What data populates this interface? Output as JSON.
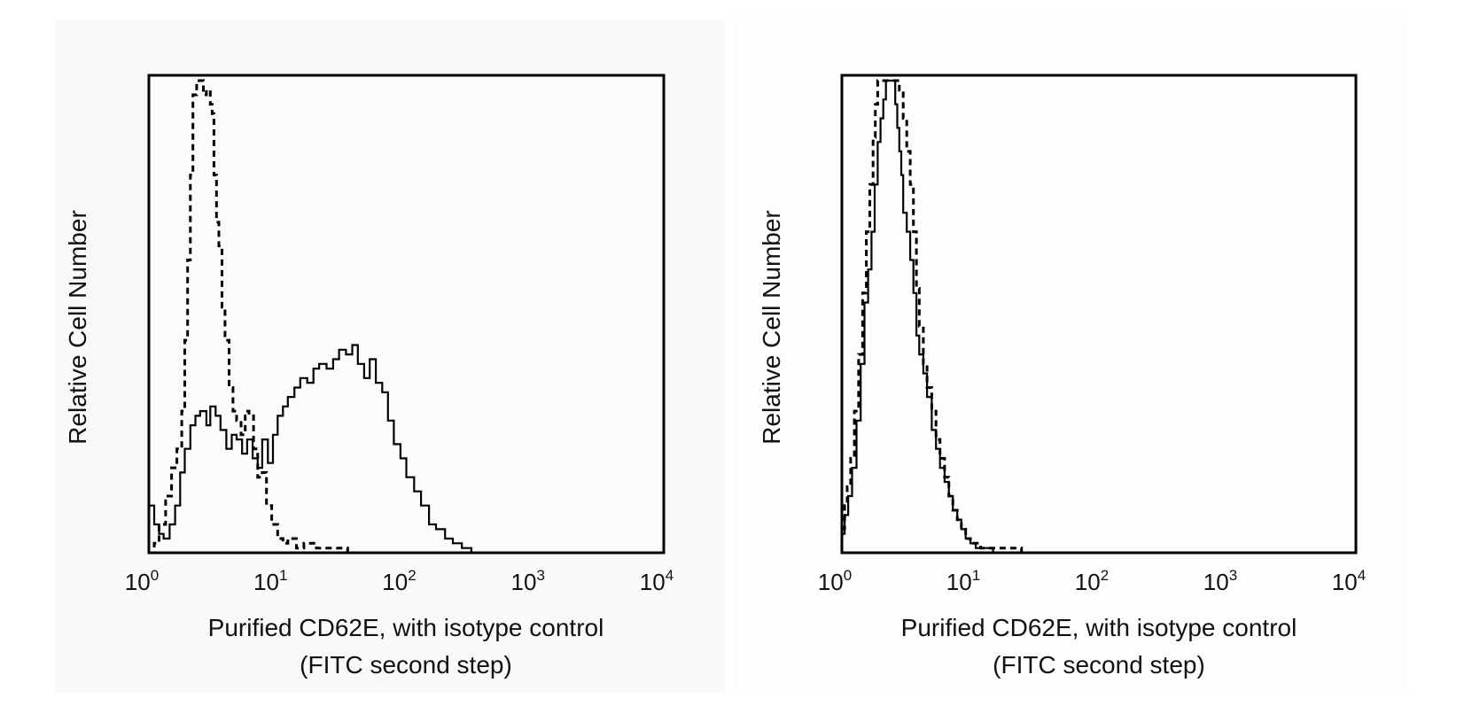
{
  "chart_data": [
    {
      "type": "line",
      "ylabel": "Relative Cell Number",
      "xlabel_line1": "Purified CD62E, with isotype control",
      "xlabel_line2": "(FITC second step)",
      "x_scale": "log",
      "xlim": [
        1,
        10000
      ],
      "ylim": [
        0,
        100
      ],
      "x_ticks": [
        {
          "base": "10",
          "exp": "0"
        },
        {
          "base": "10",
          "exp": "1"
        },
        {
          "base": "10",
          "exp": "2"
        },
        {
          "base": "10",
          "exp": "3"
        },
        {
          "base": "10",
          "exp": "4"
        }
      ],
      "grid": false,
      "series": [
        {
          "style": "solid",
          "x": [
            1.0,
            1.1,
            1.2,
            1.3,
            1.45,
            1.6,
            1.75,
            1.9,
            2.1,
            2.3,
            2.5,
            2.8,
            3.0,
            3.3,
            3.6,
            4.0,
            4.4,
            4.8,
            5.3,
            5.8,
            6.4,
            7.0,
            7.6,
            8.4,
            9.2,
            10,
            11,
            12,
            13.5,
            15,
            17,
            19,
            21,
            24,
            27,
            30,
            34,
            38,
            42,
            47,
            52,
            58,
            65,
            72,
            80,
            90,
            100,
            115,
            130,
            150,
            170,
            200,
            230,
            270,
            320
          ],
          "y": [
            10,
            6,
            4,
            3,
            6,
            10,
            17,
            22,
            27,
            29,
            30,
            27,
            31,
            29,
            26,
            22,
            25,
            24,
            21,
            24,
            20,
            18,
            24,
            19,
            25,
            29,
            31,
            33,
            35,
            37,
            36,
            39,
            40,
            39,
            41,
            43,
            42,
            44,
            40,
            37,
            41,
            36,
            34,
            28,
            23,
            20,
            16,
            13,
            10,
            6,
            5,
            3,
            2,
            1,
            0
          ]
        },
        {
          "style": "dashed",
          "x": [
            1.0,
            1.1,
            1.2,
            1.35,
            1.5,
            1.65,
            1.8,
            1.9,
            2.0,
            2.1,
            2.2,
            2.35,
            2.5,
            2.65,
            2.8,
            3.0,
            3.1,
            3.2,
            3.35,
            3.5,
            3.7,
            3.9,
            4.2,
            4.5,
            4.8,
            5.2,
            5.6,
            6.0,
            6.5,
            7.0,
            7.6,
            8.2,
            9.0,
            10,
            11,
            12,
            14,
            16,
            20,
            25,
            35,
            50
          ],
          "y": [
            0,
            2,
            6,
            12,
            18,
            22,
            30,
            45,
            62,
            80,
            97,
            100,
            100,
            97,
            98,
            95,
            93,
            80,
            70,
            65,
            52,
            45,
            35,
            30,
            28,
            25,
            30,
            29,
            22,
            16,
            17,
            10,
            6,
            3,
            2,
            3,
            1,
            2,
            1,
            1,
            0,
            0
          ]
        }
      ]
    },
    {
      "type": "line",
      "ylabel": "Relative Cell Number",
      "xlabel_line1": "Purified CD62E, with isotype control",
      "xlabel_line2": "(FITC second step)",
      "x_scale": "log",
      "xlim": [
        1,
        10000
      ],
      "ylim": [
        0,
        100
      ],
      "x_ticks": [
        {
          "base": "10",
          "exp": "0"
        },
        {
          "base": "10",
          "exp": "1"
        },
        {
          "base": "10",
          "exp": "2"
        },
        {
          "base": "10",
          "exp": "3"
        },
        {
          "base": "10",
          "exp": "4"
        }
      ],
      "grid": false,
      "series": [
        {
          "style": "solid",
          "x": [
            1.0,
            1.05,
            1.12,
            1.2,
            1.3,
            1.4,
            1.5,
            1.6,
            1.7,
            1.8,
            1.9,
            2.0,
            2.1,
            2.2,
            2.3,
            2.4,
            2.5,
            2.55,
            2.6,
            2.7,
            2.8,
            2.9,
            3.0,
            3.2,
            3.4,
            3.6,
            3.8,
            4.0,
            4.3,
            4.6,
            5.0,
            5.4,
            5.8,
            6.3,
            6.8,
            7.3,
            7.9,
            8.5,
            9.2,
            10,
            11,
            12,
            13,
            15,
            17
          ],
          "y": [
            4,
            8,
            12,
            18,
            28,
            40,
            53,
            60,
            68,
            78,
            87,
            92,
            96,
            100,
            100,
            100,
            100,
            100,
            95,
            90,
            85,
            80,
            72,
            68,
            62,
            55,
            46,
            42,
            38,
            33,
            26,
            22,
            18,
            15,
            12,
            9,
            7,
            5,
            3,
            2,
            1,
            1,
            1,
            0,
            0
          ]
        },
        {
          "style": "dashed",
          "x": [
            1.0,
            1.05,
            1.1,
            1.17,
            1.25,
            1.35,
            1.45,
            1.55,
            1.65,
            1.75,
            1.82,
            1.9,
            1.97,
            2.05,
            2.2,
            2.4,
            2.6,
            2.8,
            3.0,
            3.2,
            3.4,
            3.6,
            3.8,
            4.0,
            4.3,
            4.6,
            5.0,
            5.4,
            5.8,
            6.3,
            6.8,
            7.3,
            7.9,
            8.5,
            9.2,
            10,
            11,
            12,
            14,
            17,
            25,
            40,
            60
          ],
          "y": [
            5,
            10,
            14,
            20,
            30,
            42,
            55,
            68,
            78,
            88,
            95,
            100,
            100,
            100,
            100,
            100,
            100,
            98,
            92,
            85,
            78,
            68,
            56,
            48,
            40,
            35,
            30,
            24,
            20,
            16,
            12,
            9,
            7,
            5,
            3,
            2,
            2,
            1,
            1,
            1,
            0,
            0,
            0
          ]
        }
      ]
    }
  ]
}
